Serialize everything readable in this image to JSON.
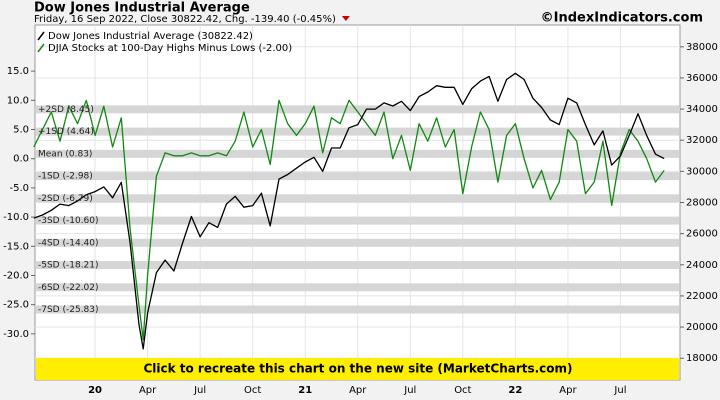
{
  "chart_data": {
    "type": "line",
    "title": "Dow Jones Industrial Average",
    "subtitle": "Friday, 16 Sep 2022, Close 30822.42, Chg. -139.40 (-0.45%)",
    "source": "©IndexIndicators.com",
    "banner": "Click to recreate this chart on the new site (MarketCharts.com)",
    "x": [
      -3.5,
      -3,
      -2.5,
      -2,
      -1.5,
      -1,
      -0.5,
      0,
      0.5,
      1,
      1.5,
      2,
      2.5,
      2.75,
      3,
      3.5,
      4,
      4.5,
      5,
      5.5,
      6,
      6.5,
      7,
      7.5,
      8,
      8.5,
      9,
      9.5,
      10,
      10.5,
      11,
      11.5,
      12,
      12.5,
      13,
      13.5,
      14,
      14.5,
      15,
      15.5,
      16,
      16.5,
      17,
      17.5,
      18,
      18.5,
      19,
      19.5,
      20,
      20.5,
      21,
      21.5,
      22,
      22.5,
      23,
      23.5,
      24,
      24.5,
      25,
      25.5,
      26,
      26.5,
      27,
      27.5,
      28,
      28.5,
      29,
      29.5,
      30,
      30.5,
      31,
      31.5,
      32,
      32.5
    ],
    "xlim": [
      -3.43,
      33.4
    ],
    "xticks": [
      {
        "value": 0,
        "label": "20"
      },
      {
        "value": 3,
        "label": "Apr"
      },
      {
        "value": 6,
        "label": "Jul"
      },
      {
        "value": 9,
        "label": "Oct"
      },
      {
        "value": 12,
        "label": "21"
      },
      {
        "value": 15,
        "label": "Apr"
      },
      {
        "value": 18,
        "label": "Jul"
      },
      {
        "value": 21,
        "label": "Oct"
      },
      {
        "value": 24,
        "label": "22"
      },
      {
        "value": 27,
        "label": "Apr"
      },
      {
        "value": 30,
        "label": "Jul"
      }
    ],
    "ylim": [
      -37.9,
      22.9
    ],
    "yticks": [
      {
        "value": 15,
        "label": "15.0"
      },
      {
        "value": 10,
        "label": "10.0"
      },
      {
        "value": 5,
        "label": "5.0"
      },
      {
        "value": 0,
        "label": "0.0"
      },
      {
        "value": -5,
        "label": "-5.0"
      },
      {
        "value": -10,
        "label": "-10.0"
      },
      {
        "value": -15,
        "label": "-15.0"
      },
      {
        "value": -20,
        "label": "-20.0"
      },
      {
        "value": -25,
        "label": "-25.0"
      },
      {
        "value": -30,
        "label": "-30.0"
      }
    ],
    "y2lim": [
      16600,
      39400
    ],
    "y2ticks": [
      38000,
      36000,
      34000,
      32000,
      30000,
      28000,
      26000,
      24000,
      22000,
      20000,
      18000
    ],
    "bands": [
      {
        "value": 8.45,
        "label": "+2SD (8.45)"
      },
      {
        "value": 4.64,
        "label": "+1SD (4.64)"
      },
      {
        "value": 0.83,
        "label": "Mean (0.83)"
      },
      {
        "value": -2.98,
        "label": "-1SD (-2.98)"
      },
      {
        "value": -6.79,
        "label": "-2SD (-6.79)"
      },
      {
        "value": -10.6,
        "label": "-3SD (-10.60)"
      },
      {
        "value": -14.4,
        "label": "-4SD (-14.40)"
      },
      {
        "value": -18.21,
        "label": "-5SD (-18.21)"
      },
      {
        "value": -22.02,
        "label": "-6SD (-22.02)"
      },
      {
        "value": -25.83,
        "label": "-7SD (-25.83)"
      }
    ],
    "grid": true,
    "series": [
      {
        "name": "Dow Jones Industrial Average (30822.42)",
        "color": "#000000",
        "axis": "y2",
        "values": [
          27000,
          27200,
          27500,
          27900,
          27800,
          28100,
          28500,
          28700,
          29000,
          28300,
          29300,
          25400,
          20200,
          18600,
          20900,
          23500,
          24300,
          23600,
          25400,
          27100,
          25800,
          26700,
          26400,
          27900,
          28400,
          27700,
          27800,
          28600,
          26500,
          29500,
          29800,
          30200,
          30600,
          30900,
          30000,
          31500,
          31500,
          32800,
          33000,
          34000,
          34000,
          34400,
          34200,
          34500,
          33900,
          34800,
          35100,
          35500,
          35400,
          35400,
          34300,
          35300,
          35800,
          36100,
          34500,
          35900,
          36300,
          35900,
          34700,
          34100,
          33300,
          33000,
          34700,
          34400,
          33000,
          31700,
          32600,
          30400,
          31000,
          32300,
          33700,
          32300,
          31100,
          30822.42
        ]
      },
      {
        "name": "DJIA Stocks at 100-Day Highs Minus Lows (-2.00)",
        "color": "#118811",
        "values": [
          2,
          5,
          8,
          3,
          9,
          6,
          10,
          4,
          9,
          2,
          7,
          -12,
          -25,
          -31,
          -20,
          -3,
          1,
          0.5,
          0.5,
          1,
          0.5,
          0.5,
          1,
          0.5,
          3,
          8,
          2,
          5,
          -1,
          10,
          6,
          4,
          6,
          9,
          1,
          7,
          6,
          10,
          8,
          6,
          4,
          8,
          0,
          4,
          -2,
          6,
          3,
          7,
          2,
          5,
          -6,
          2,
          8,
          5,
          -4,
          4,
          6,
          0,
          -5,
          -2,
          -7,
          -4,
          5,
          3,
          -6,
          -4,
          3,
          -8,
          1,
          5,
          3,
          0,
          -4,
          -2
        ]
      }
    ]
  }
}
